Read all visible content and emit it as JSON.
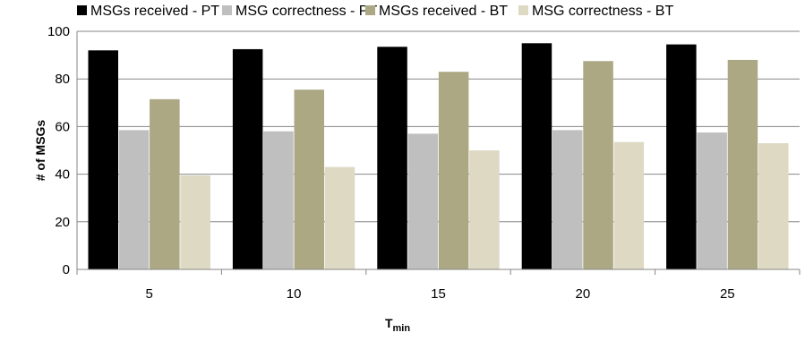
{
  "chart_data": {
    "type": "bar",
    "categories": [
      "5",
      "10",
      "15",
      "20",
      "25"
    ],
    "series": [
      {
        "name": "MSGs received - PT",
        "color": "#000000",
        "values": [
          92,
          92.5,
          93.5,
          95,
          94.5
        ]
      },
      {
        "name": "MSG correctness - PT",
        "color": "#bfbfbf",
        "values": [
          58.5,
          58,
          57,
          58.5,
          57.5
        ]
      },
      {
        "name": "MSGs received - BT",
        "color": "#aca883",
        "values": [
          71.5,
          75.5,
          83,
          87.5,
          88
        ]
      },
      {
        "name": "MSG correctness - BT",
        "color": "#ddd9c3",
        "values": [
          39.5,
          43,
          50,
          53.5,
          53
        ]
      }
    ],
    "yticks": [
      0,
      20,
      40,
      60,
      80,
      100
    ],
    "ylim": [
      0,
      100
    ],
    "ylabel": "# of MSGs",
    "xlabel": {
      "main": "T",
      "subscript": "min"
    },
    "grid": true,
    "legend_position": "top"
  }
}
